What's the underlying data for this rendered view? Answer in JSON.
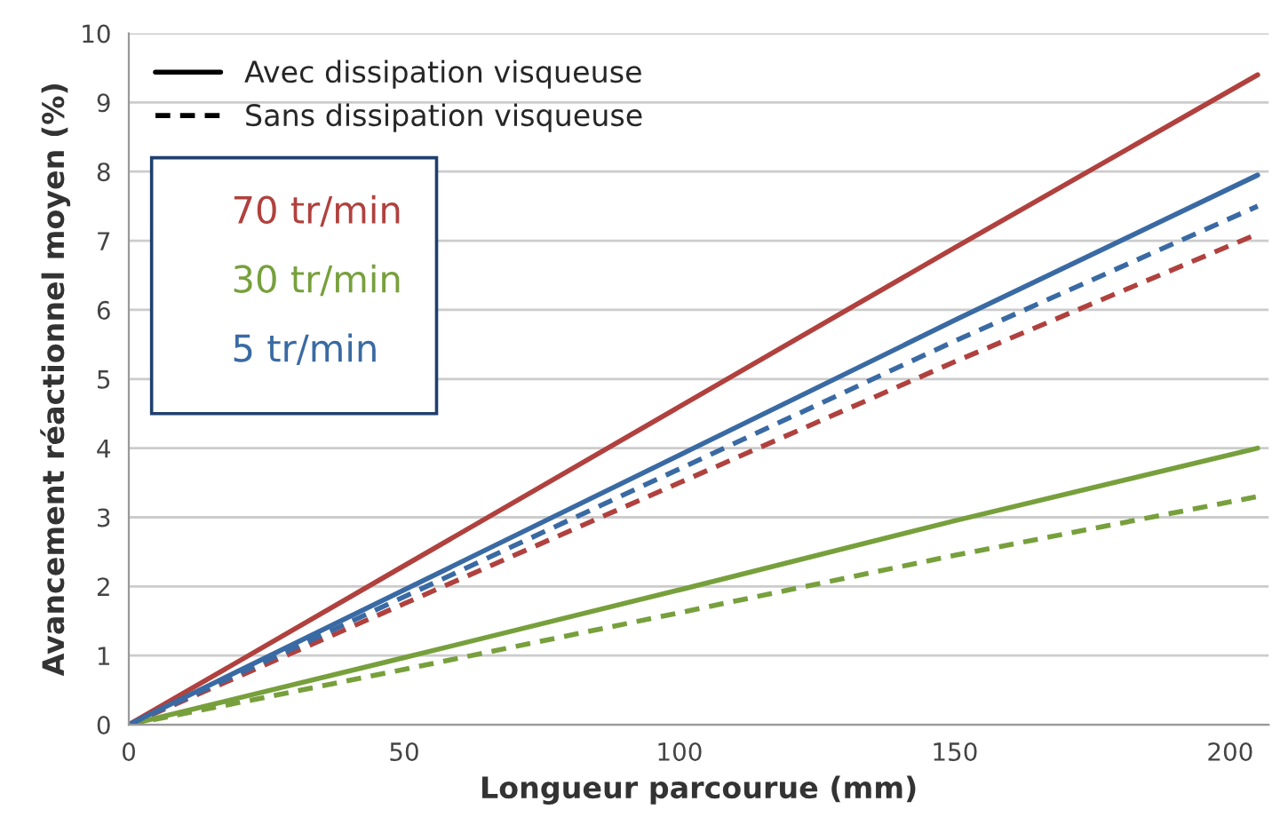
{
  "chart_data": {
    "type": "line",
    "xlabel": "Longueur parcourue (mm)",
    "ylabel": "Avancement réactionnel moyen (%)",
    "x": [
      0,
      50,
      100,
      150,
      205
    ],
    "series": [
      {
        "color": "#b0413e",
        "line_style": "solid",
        "values": [
          0,
          2.3,
          4.6,
          6.9,
          9.4
        ]
      },
      {
        "color": "#b0413e",
        "line_style": "dashed",
        "values": [
          0,
          1.75,
          3.5,
          5.25,
          7.1
        ]
      },
      {
        "color": "#77a03c",
        "line_style": "solid",
        "values": [
          0,
          0.97,
          1.95,
          2.95,
          4.0
        ]
      },
      {
        "color": "#77a03c",
        "line_style": "dashed",
        "values": [
          0,
          0.8,
          1.62,
          2.45,
          3.3
        ]
      },
      {
        "color": "#3a6aa3",
        "line_style": "solid",
        "values": [
          0,
          1.95,
          3.9,
          5.85,
          7.95
        ]
      },
      {
        "color": "#3a6aa3",
        "line_style": "dashed",
        "values": [
          0,
          1.85,
          3.7,
          5.55,
          7.5
        ]
      }
    ],
    "annotations": [
      "Avec dissipation visqueuse",
      "Sans dissipation visqueuse",
      "70 tr/min",
      "30 tr/min",
      "5 tr/min"
    ],
    "xlim": [
      0,
      207
    ],
    "ylim": [
      0,
      10
    ],
    "xticks": [
      0,
      50,
      100,
      150,
      200
    ],
    "yticks": [
      0,
      1,
      2,
      3,
      4,
      5,
      6,
      7,
      8,
      9,
      10
    ],
    "grid": "y",
    "marker": "none"
  }
}
